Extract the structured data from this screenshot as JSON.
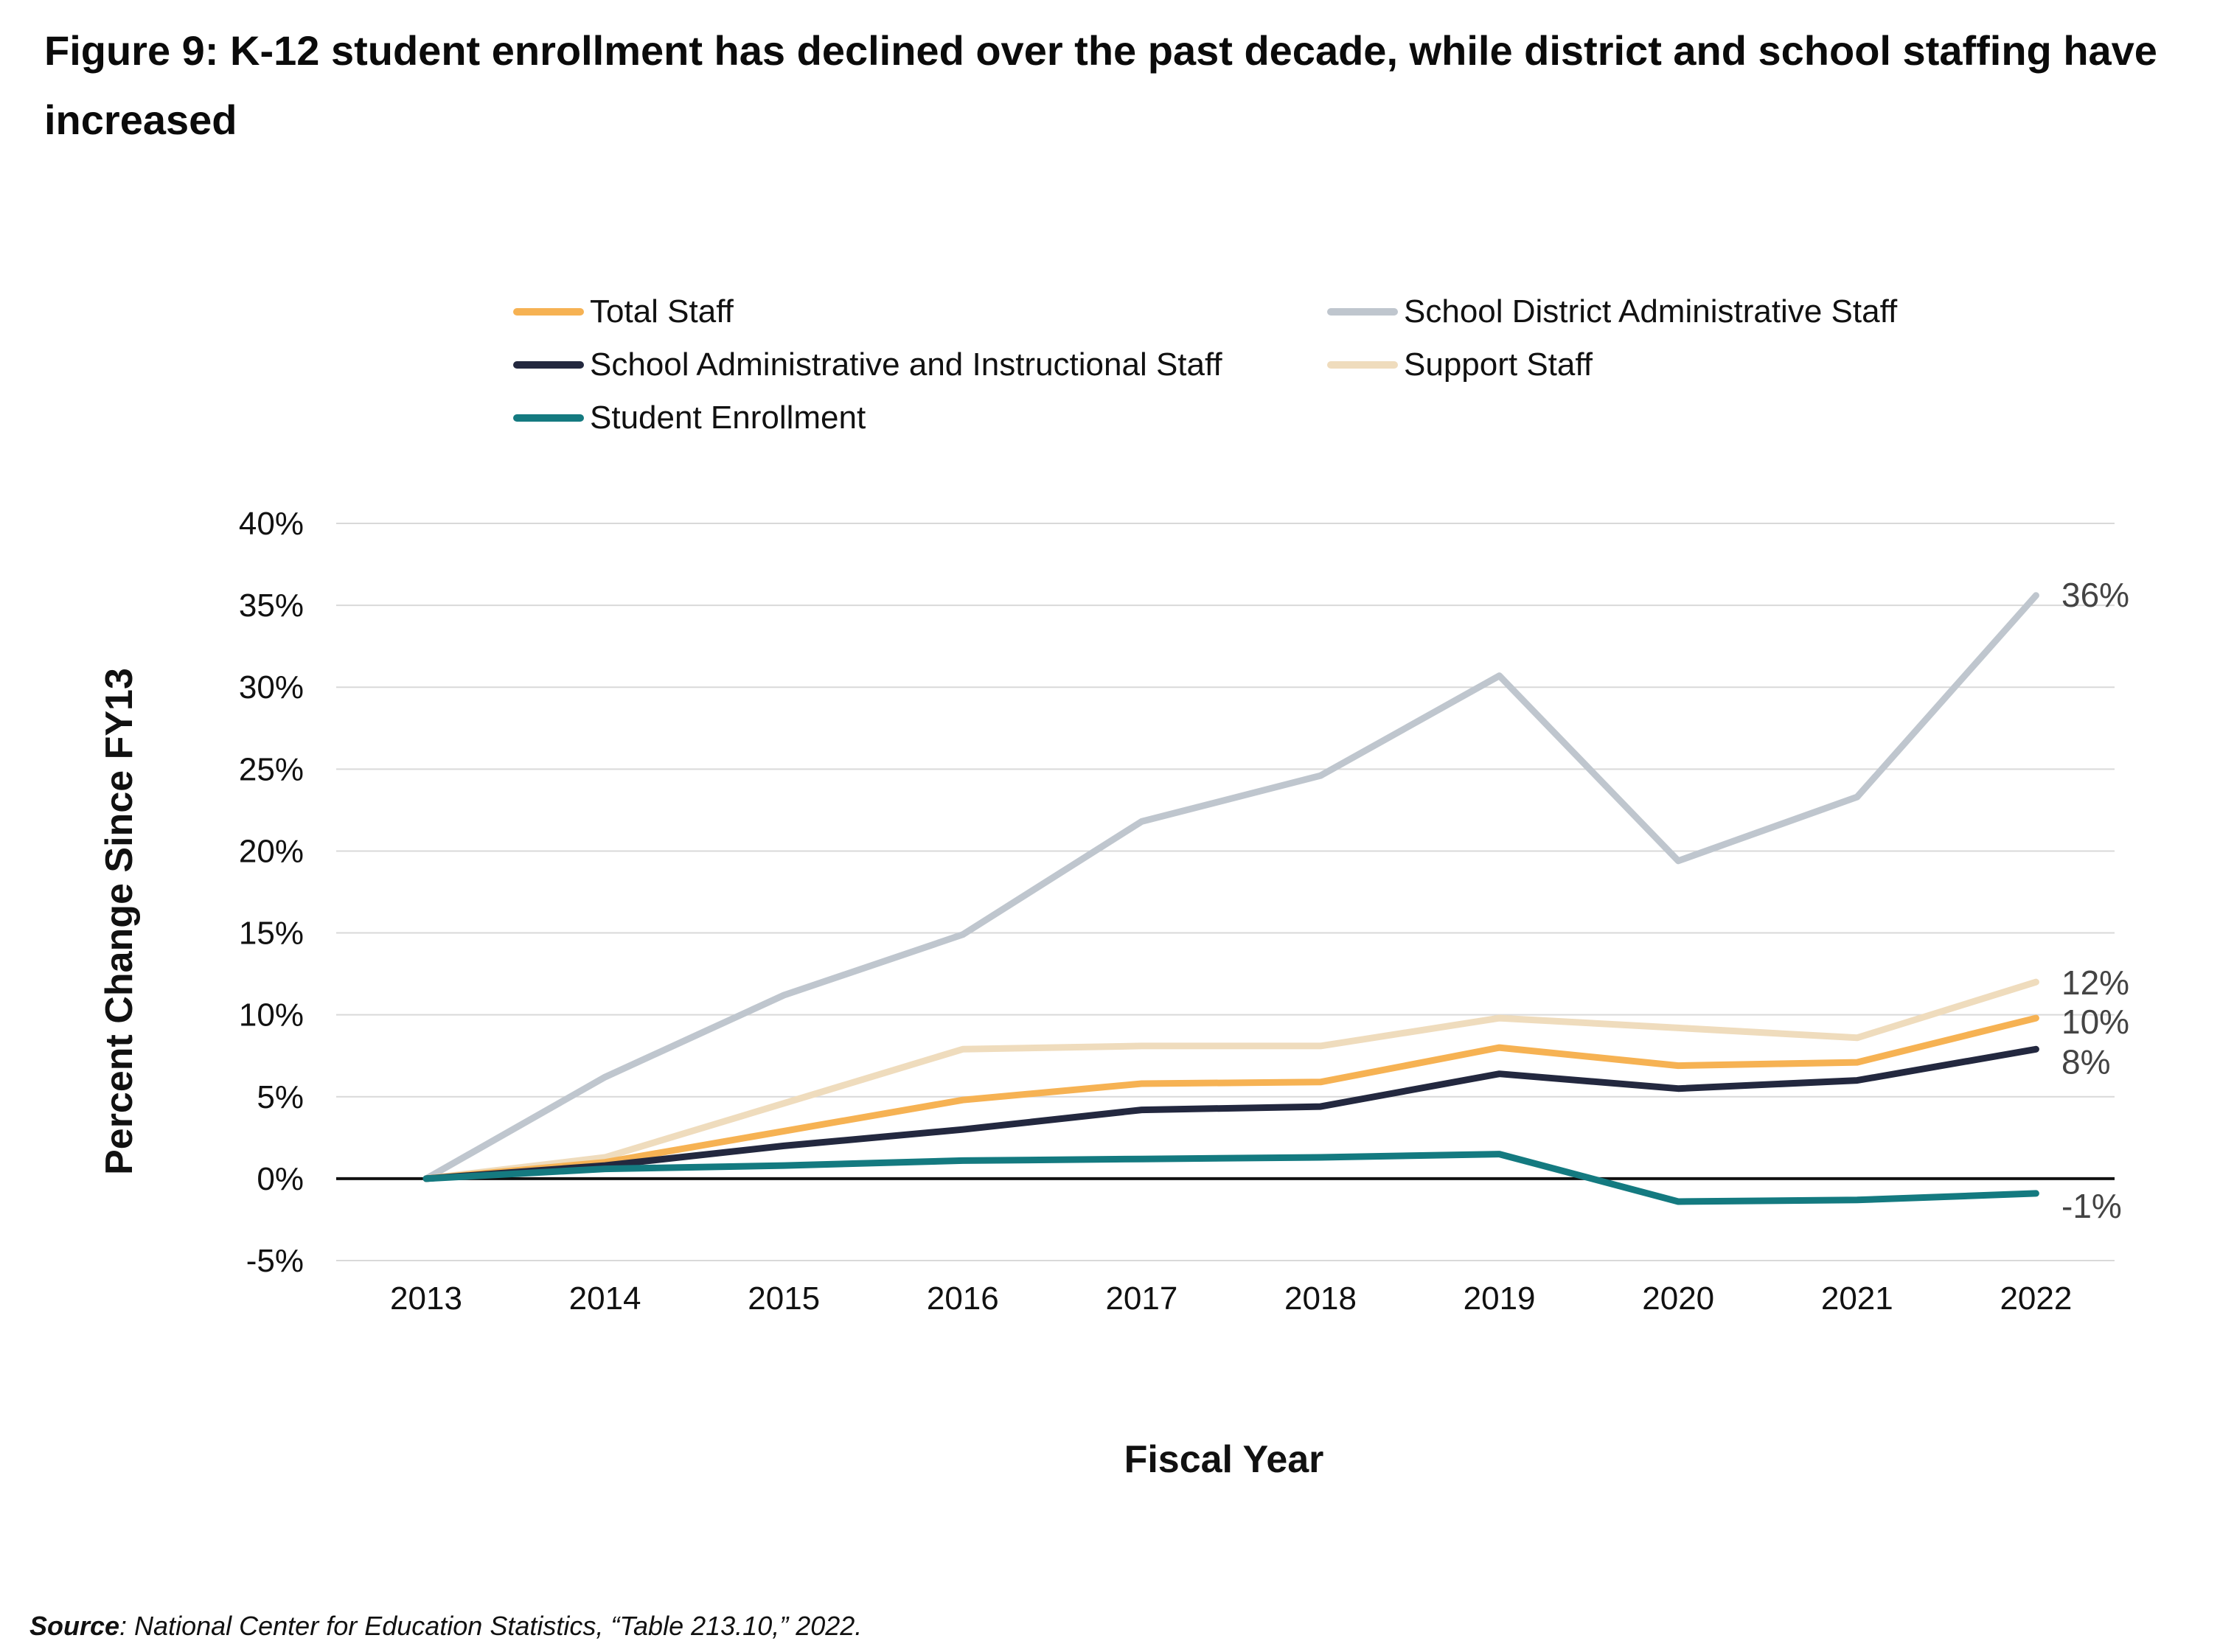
{
  "title": "Figure 9: K-12 student enrollment has declined over the past decade, while district and school staffing have increased",
  "source": {
    "label": "Source",
    "text": ": National Center for Education Statistics, “Table 213.10,” 2022."
  },
  "chart_data": {
    "type": "line",
    "title": "Figure 9: K-12 student enrollment has declined over the past decade, while district and school staffing have increased",
    "xlabel": "Fiscal Year",
    "ylabel": "Percent Change Since FY13",
    "x": [
      "2013",
      "2014",
      "2015",
      "2016",
      "2017",
      "2018",
      "2019",
      "2020",
      "2021",
      "2022"
    ],
    "ylim": [
      -5,
      40
    ],
    "yticks": [
      -5,
      0,
      5,
      10,
      15,
      20,
      25,
      30,
      35,
      40
    ],
    "ytick_labels": [
      "-5%",
      "0%",
      "5%",
      "10%",
      "15%",
      "20%",
      "25%",
      "30%",
      "35%",
      "40%"
    ],
    "grid": true,
    "legend_position": "top",
    "series": [
      {
        "name": "School District Administrative Staff",
        "color": "#bfc6ce",
        "values": [
          0,
          6.2,
          11.2,
          14.9,
          21.8,
          24.6,
          30.7,
          19.4,
          23.3,
          35.6
        ],
        "end_label": "36%"
      },
      {
        "name": "Support Staff",
        "color": "#efdcbd",
        "values": [
          0,
          1.3,
          4.6,
          7.9,
          8.1,
          8.1,
          9.8,
          9.2,
          8.6,
          12.0
        ],
        "end_label": "12%"
      },
      {
        "name": "Total Staff",
        "color": "#f6b253",
        "values": [
          0,
          1.0,
          2.9,
          4.8,
          5.8,
          5.9,
          8.0,
          6.9,
          7.1,
          9.8
        ],
        "end_label": "10%"
      },
      {
        "name": "School Administrative and Instructional Staff",
        "color": "#23283f",
        "values": [
          0,
          0.8,
          2.0,
          3.0,
          4.2,
          4.4,
          6.4,
          5.5,
          6.0,
          7.9
        ],
        "end_label": "8%"
      },
      {
        "name": "Student Enrollment",
        "color": "#147a80",
        "values": [
          0,
          0.6,
          0.8,
          1.1,
          1.2,
          1.3,
          1.5,
          -1.4,
          -1.3,
          -0.9
        ],
        "end_label": "-1%"
      }
    ]
  },
  "legend": [
    {
      "label": "Total Staff",
      "color": "#f6b253"
    },
    {
      "label": "School District Administrative Staff",
      "color": "#bfc6ce"
    },
    {
      "label": "School Administrative and Instructional Staff",
      "color": "#23283f"
    },
    {
      "label": "Support Staff",
      "color": "#efdcbd"
    },
    {
      "label": "Student Enrollment",
      "color": "#147a80"
    }
  ]
}
